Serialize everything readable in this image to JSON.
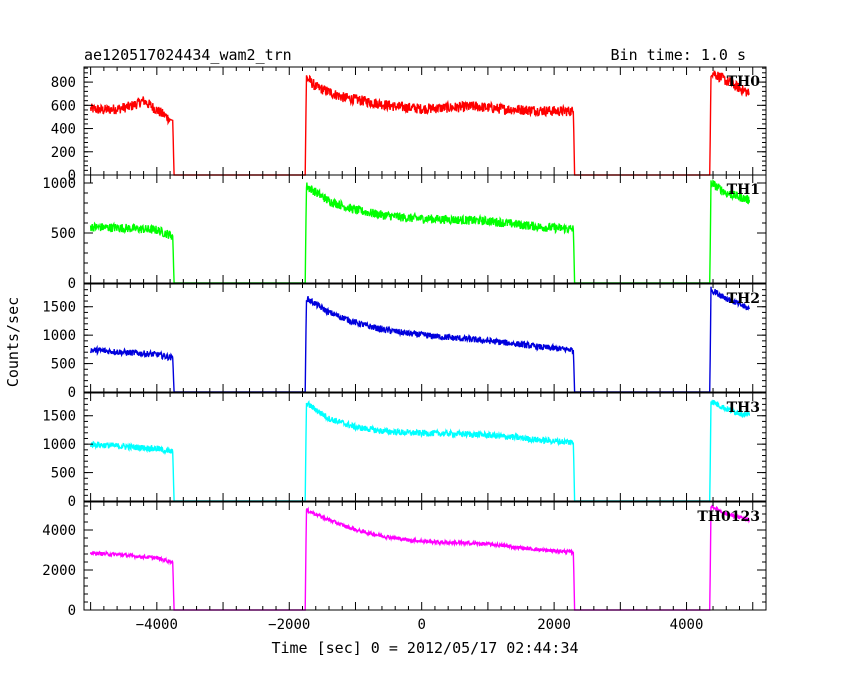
{
  "header": {
    "title": "ae120517024434_wam2_trn",
    "bin_time": "Bin time: 1.0 s"
  },
  "axes": {
    "xlabel": "Time [sec] 0 = 2012/05/17 02:44:34",
    "ylabel": "Counts/sec"
  },
  "chart_data": {
    "type": "line",
    "title": "ae120517024434_wam2_trn",
    "subtitle": "Bin time: 1.0 s",
    "xlabel": "Time [sec] 0 = 2012/05/17 02:44:34",
    "ylabel": "Counts/sec",
    "xlim": [
      -5100,
      5200
    ],
    "x_ticks": [
      -4000,
      -2000,
      0,
      2000,
      4000
    ],
    "x_tick_labels": [
      "−4000",
      "−2000",
      "0",
      "2000",
      "4000"
    ],
    "grid": false,
    "panels": [
      {
        "name": "TH0",
        "color": "#ff0000",
        "ylim": [
          0,
          930
        ],
        "y_ticks": [
          0,
          200,
          400,
          600,
          800
        ],
        "y_tick_labels": [
          "0",
          "200",
          "400",
          "600",
          "800"
        ],
        "x": [
          -5000,
          -4800,
          -4600,
          -4400,
          -4200,
          -4000,
          -3800,
          -3760,
          -3740,
          -1760,
          -1740,
          -1600,
          -1200,
          -800,
          -400,
          0,
          400,
          800,
          1200,
          1600,
          2000,
          2290,
          2310,
          4350,
          4370,
          4600,
          4950
        ],
        "y": [
          570,
          560,
          570,
          590,
          640,
          560,
          480,
          470,
          0,
          0,
          840,
          760,
          670,
          630,
          590,
          570,
          580,
          590,
          570,
          560,
          550,
          550,
          0,
          0,
          890,
          810,
          700
        ],
        "noise": 45
      },
      {
        "name": "TH1",
        "color": "#00ff00",
        "ylim": [
          0,
          1080
        ],
        "y_ticks": [
          0,
          500,
          1000
        ],
        "y_tick_labels": [
          "0",
          "500",
          "1000"
        ],
        "x": [
          -5000,
          -4500,
          -4000,
          -3760,
          -3740,
          -1760,
          -1740,
          -1400,
          -1000,
          -600,
          -200,
          200,
          600,
          1000,
          1400,
          1800,
          2290,
          2310,
          4350,
          4370,
          4600,
          4950
        ],
        "y": [
          560,
          550,
          530,
          470,
          0,
          0,
          970,
          820,
          730,
          680,
          650,
          640,
          630,
          620,
          590,
          560,
          540,
          0,
          0,
          1000,
          900,
          830
        ],
        "noise": 45
      },
      {
        "name": "TH2",
        "color": "#0000dd",
        "ylim": [
          0,
          1900
        ],
        "y_ticks": [
          0,
          500,
          1000,
          1500
        ],
        "y_tick_labels": [
          "0",
          "500",
          "1000",
          "1500"
        ],
        "x": [
          -5000,
          -4500,
          -4000,
          -3760,
          -3740,
          -1760,
          -1740,
          -1400,
          -1000,
          -600,
          -200,
          200,
          600,
          1000,
          1400,
          1800,
          2290,
          2310,
          4350,
          4370,
          4600,
          4950
        ],
        "y": [
          740,
          700,
          660,
          600,
          0,
          0,
          1650,
          1400,
          1220,
          1100,
          1030,
          980,
          940,
          900,
          850,
          790,
          740,
          0,
          0,
          1800,
          1650,
          1460
        ],
        "noise": 55
      },
      {
        "name": "TH3",
        "color": "#00ffff",
        "ylim": [
          0,
          1900
        ],
        "y_ticks": [
          0,
          500,
          1000,
          1500
        ],
        "y_tick_labels": [
          "0",
          "500",
          "1000",
          "1500"
        ],
        "x": [
          -5000,
          -4500,
          -4000,
          -3760,
          -3740,
          -1760,
          -1740,
          -1400,
          -1000,
          -600,
          -200,
          200,
          600,
          1000,
          1400,
          1800,
          2290,
          2310,
          4350,
          4370,
          4600,
          4950
        ],
        "y": [
          1000,
          960,
          920,
          860,
          0,
          0,
          1720,
          1450,
          1300,
          1230,
          1200,
          1190,
          1180,
          1160,
          1120,
          1070,
          1030,
          0,
          0,
          1760,
          1620,
          1500
        ],
        "noise": 55
      },
      {
        "name": "TH0123",
        "color": "#ff00ff",
        "ylim": [
          0,
          5400
        ],
        "y_ticks": [
          0,
          2000,
          4000
        ],
        "y_tick_labels": [
          "0",
          "2000",
          "4000"
        ],
        "x": [
          -5000,
          -4500,
          -4000,
          -3760,
          -3740,
          -1760,
          -1740,
          -1400,
          -1000,
          -600,
          -200,
          200,
          600,
          1000,
          1400,
          1800,
          2290,
          2310,
          4350,
          4370,
          4600,
          4950
        ],
        "y": [
          2850,
          2750,
          2600,
          2400,
          0,
          0,
          5000,
          4500,
          4000,
          3700,
          3500,
          3400,
          3350,
          3300,
          3150,
          3000,
          2900,
          0,
          0,
          5200,
          4800,
          4500
        ],
        "noise": 90
      }
    ]
  }
}
